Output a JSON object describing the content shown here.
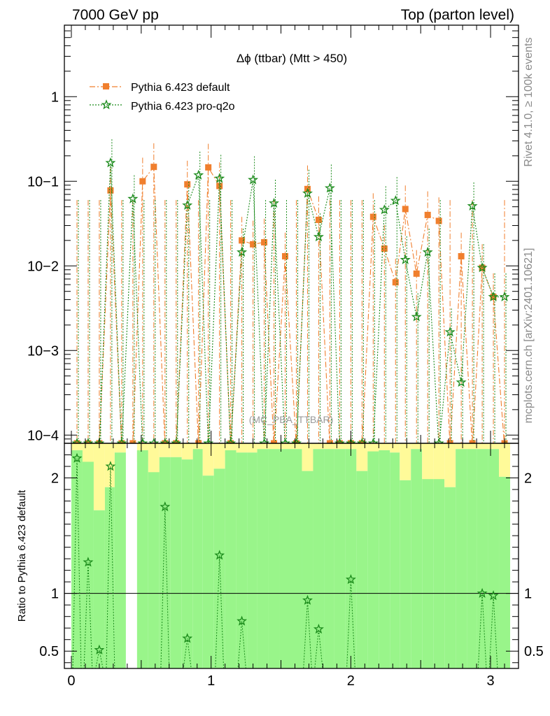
{
  "header": {
    "left": "7000 GeV pp",
    "right": "Top (parton level)"
  },
  "side": {
    "rivet": "Rivet 4.1.0, ≥ 100k events",
    "site": "mcplots.cern.ch [arXiv:2401.10621]"
  },
  "chart_data": {
    "type": "line",
    "title": "Δϕ (ttbar) (Mtt > 450)",
    "watermark": "(MC_PBA_TTBAR)",
    "xlabel": "",
    "ylabel": "",
    "ratio_ylabel": "Ratio to Pythia 6.423 default",
    "xlim": [
      -0.05,
      3.2
    ],
    "ylim": [
      8e-05,
      7
    ],
    "ratio_ylim": [
      0.35,
      2.3
    ],
    "x_ticks": [
      0,
      1,
      2,
      3
    ],
    "y_ticks": [
      {
        "value": 1,
        "label": "1"
      },
      {
        "value": 0.1,
        "label": "10−1"
      },
      {
        "value": 0.01,
        "label": "10−2"
      },
      {
        "value": 0.001,
        "label": "10−3"
      },
      {
        "value": 0.0001,
        "label": "10−4"
      }
    ],
    "ratio_ticks": [
      {
        "value": 0.5,
        "label": "0.5"
      },
      {
        "value": 1,
        "label": "1"
      },
      {
        "value": 2,
        "label": "2"
      }
    ],
    "series": [
      {
        "name": "Pythia 6.423 default",
        "color": "#f07f2e",
        "marker": "square",
        "style": "dashdot",
        "x": [
          0.04,
          0.12,
          0.2,
          0.28,
          0.36,
          0.44,
          0.51,
          0.59,
          0.67,
          0.75,
          0.83,
          0.91,
          0.98,
          1.06,
          1.14,
          1.22,
          1.3,
          1.38,
          1.45,
          1.53,
          1.61,
          1.69,
          1.77,
          1.85,
          1.92,
          2.0,
          2.08,
          2.16,
          2.24,
          2.32,
          2.39,
          2.47,
          2.55,
          2.63,
          2.71,
          2.79,
          2.87,
          2.94,
          3.02,
          3.1
        ],
        "values": [
          0,
          0,
          0,
          0.078,
          0,
          0,
          0.1,
          0.148,
          0,
          0,
          0.092,
          0,
          0.146,
          0.088,
          0,
          0.02,
          0.018,
          0.019,
          0,
          0.013,
          0,
          0.081,
          0.035,
          0,
          0,
          0,
          0,
          0.038,
          0.016,
          0.0064,
          0.047,
          0.0081,
          0.04,
          0.034,
          0,
          0.013,
          0,
          0.0095,
          0.0043,
          0
        ]
      },
      {
        "name": "Pythia 6.423 pro-q2o",
        "color": "#1a8a1a",
        "marker": "star",
        "style": "dotted",
        "x": [
          0.04,
          0.12,
          0.2,
          0.28,
          0.36,
          0.44,
          0.51,
          0.59,
          0.67,
          0.75,
          0.83,
          0.91,
          0.98,
          1.06,
          1.14,
          1.22,
          1.3,
          1.38,
          1.45,
          1.53,
          1.61,
          1.69,
          1.77,
          1.85,
          1.92,
          2.0,
          2.08,
          2.16,
          2.24,
          2.32,
          2.39,
          2.47,
          2.55,
          2.63,
          2.71,
          2.79,
          2.87,
          2.94,
          3.02,
          3.1
        ],
        "values": [
          0,
          0,
          0,
          0.165,
          0,
          0.062,
          0,
          0,
          0,
          0,
          0.052,
          0.118,
          0,
          0.108,
          0,
          0.0145,
          0.104,
          0,
          0.055,
          0,
          0,
          0.072,
          0.022,
          0.083,
          0,
          0,
          0,
          0,
          0.046,
          0.059,
          0.0118,
          0.0025,
          0.0145,
          0,
          0.00165,
          0.00042,
          0.051,
          0.0095,
          0.0043,
          0.0043
        ]
      }
    ],
    "ratio_points": {
      "x": [
        0.04,
        0.12,
        0.2,
        0.28,
        0.67,
        0.83,
        1.06,
        1.22,
        1.69,
        1.77,
        2.0,
        2.94,
        3.02
      ],
      "values": [
        2.17,
        1.27,
        0.51,
        2.1,
        1.75,
        0.61,
        1.33,
        0.76,
        0.94,
        0.69,
        1.12,
        1.0,
        0.98
      ]
    },
    "ratio_band": [
      {
        "x0": 0.0,
        "x1": 0.08,
        "yel_lo": 2.24,
        "grn_lo": 2.24
      },
      {
        "x0": 0.08,
        "x1": 0.16,
        "yel_lo": 2.08,
        "grn_lo": 2.14
      },
      {
        "x0": 0.16,
        "x1": 0.24,
        "yel_lo": 1.72,
        "grn_lo": 1.72
      },
      {
        "x0": 0.24,
        "x1": 0.31,
        "yel_lo": 1.92,
        "grn_lo": 1.92
      },
      {
        "x0": 0.31,
        "x1": 0.39,
        "yel_lo": 2.22,
        "grn_lo": 2.22
      },
      {
        "x0": 0.47,
        "x1": 0.55,
        "yel_lo": 2.14,
        "grn_lo": 2.24
      },
      {
        "x0": 0.55,
        "x1": 0.63,
        "yel_lo": 1.98,
        "grn_lo": 2.05
      },
      {
        "x0": 0.63,
        "x1": 0.71,
        "yel_lo": 2.18,
        "grn_lo": 2.18
      },
      {
        "x0": 0.71,
        "x1": 0.79,
        "yel_lo": 2.18,
        "grn_lo": 2.18
      },
      {
        "x0": 0.79,
        "x1": 0.87,
        "yel_lo": 2.16,
        "grn_lo": 2.16
      },
      {
        "x0": 0.87,
        "x1": 0.94,
        "yel_lo": 2.16,
        "grn_lo": 2.25
      },
      {
        "x0": 0.94,
        "x1": 1.02,
        "yel_lo": 2.02,
        "grn_lo": 2.02
      },
      {
        "x0": 1.02,
        "x1": 1.1,
        "yel_lo": 2.08,
        "grn_lo": 2.08
      },
      {
        "x0": 1.1,
        "x1": 1.18,
        "yel_lo": 2.18,
        "grn_lo": 2.24
      },
      {
        "x0": 1.18,
        "x1": 1.26,
        "yel_lo": 2.22,
        "grn_lo": 2.22
      },
      {
        "x0": 1.26,
        "x1": 1.33,
        "yel_lo": 2.22,
        "grn_lo": 2.22
      },
      {
        "x0": 1.33,
        "x1": 1.41,
        "yel_lo": 2.25,
        "grn_lo": 2.25
      },
      {
        "x0": 1.41,
        "x1": 1.49,
        "yel_lo": 2.25,
        "grn_lo": 2.25
      },
      {
        "x0": 1.49,
        "x1": 1.57,
        "yel_lo": 2.25,
        "grn_lo": 2.25
      },
      {
        "x0": 1.57,
        "x1": 1.65,
        "yel_lo": 2.25,
        "grn_lo": 2.25
      },
      {
        "x0": 1.65,
        "x1": 1.73,
        "yel_lo": 2.06,
        "grn_lo": 2.06
      },
      {
        "x0": 1.73,
        "x1": 1.81,
        "yel_lo": 2.25,
        "grn_lo": 2.25
      },
      {
        "x0": 1.81,
        "x1": 1.88,
        "yel_lo": 2.25,
        "grn_lo": 2.25
      },
      {
        "x0": 1.88,
        "x1": 1.96,
        "yel_lo": 2.25,
        "grn_lo": 2.25
      },
      {
        "x0": 1.96,
        "x1": 2.04,
        "yel_lo": 2.25,
        "grn_lo": 2.25
      },
      {
        "x0": 2.04,
        "x1": 2.12,
        "yel_lo": 2.06,
        "grn_lo": 2.06
      },
      {
        "x0": 2.12,
        "x1": 2.2,
        "yel_lo": 2.12,
        "grn_lo": 2.23
      },
      {
        "x0": 2.2,
        "x1": 2.28,
        "yel_lo": 2.24,
        "grn_lo": 2.24
      },
      {
        "x0": 2.28,
        "x1": 2.35,
        "yel_lo": 2.22,
        "grn_lo": 2.22
      },
      {
        "x0": 2.35,
        "x1": 2.43,
        "yel_lo": 1.98,
        "grn_lo": 1.98
      },
      {
        "x0": 2.43,
        "x1": 2.51,
        "yel_lo": 2.25,
        "grn_lo": 2.25
      },
      {
        "x0": 2.51,
        "x1": 2.59,
        "yel_lo": 1.98,
        "grn_lo": 1.99
      },
      {
        "x0": 2.59,
        "x1": 2.67,
        "yel_lo": 1.96,
        "grn_lo": 1.99
      },
      {
        "x0": 2.67,
        "x1": 2.75,
        "yel_lo": 1.92,
        "grn_lo": 1.92
      },
      {
        "x0": 2.75,
        "x1": 2.83,
        "yel_lo": 2.25,
        "grn_lo": 2.25
      },
      {
        "x0": 2.83,
        "x1": 2.9,
        "yel_lo": 2.25,
        "grn_lo": 2.25
      },
      {
        "x0": 2.9,
        "x1": 2.98,
        "yel_lo": 2.25,
        "grn_lo": 2.25
      },
      {
        "x0": 2.98,
        "x1": 3.06,
        "yel_lo": 2.25,
        "grn_lo": 2.25
      },
      {
        "x0": 3.06,
        "x1": 3.14,
        "yel_lo": 2.01,
        "grn_lo": 2.01
      }
    ]
  }
}
